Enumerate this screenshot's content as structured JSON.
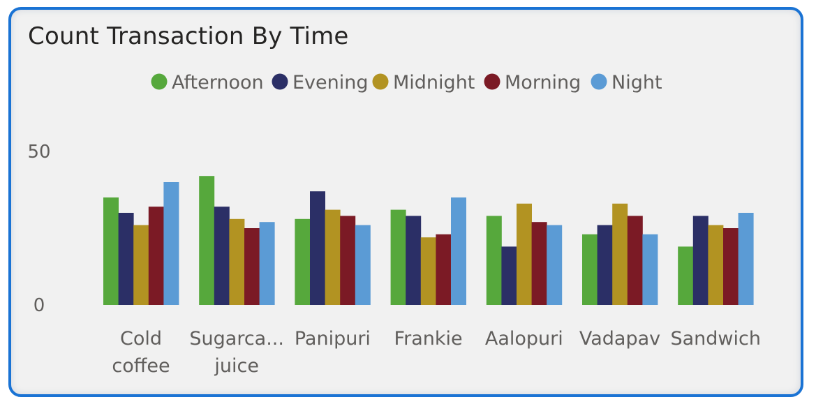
{
  "chart_data": {
    "type": "bar",
    "title": "Count Transaction By Time",
    "categories": [
      "Cold coffee",
      "Sugarca... juice",
      "Panipuri",
      "Frankie",
      "Aalopuri",
      "Vadapav",
      "Sandwich"
    ],
    "category_lines": [
      [
        "Cold",
        "coffee"
      ],
      [
        "Sugarca...",
        "juice"
      ],
      [
        "Panipuri"
      ],
      [
        "Frankie"
      ],
      [
        "Aalopuri"
      ],
      [
        "Vadapav"
      ],
      [
        "Sandwich"
      ]
    ],
    "series": [
      {
        "name": "Afternoon",
        "color": "#56a83c",
        "values": [
          35,
          42,
          28,
          31,
          29,
          23,
          19
        ]
      },
      {
        "name": "Evening",
        "color": "#2b2f66",
        "values": [
          30,
          32,
          37,
          29,
          19,
          26,
          29
        ]
      },
      {
        "name": "Midnight",
        "color": "#b29322",
        "values": [
          26,
          28,
          31,
          22,
          33,
          33,
          26
        ]
      },
      {
        "name": "Morning",
        "color": "#7b1a25",
        "values": [
          32,
          25,
          29,
          23,
          27,
          29,
          25
        ]
      },
      {
        "name": "Night",
        "color": "#5b9bd5",
        "values": [
          40,
          27,
          26,
          35,
          26,
          23,
          30
        ]
      }
    ],
    "yticks": [
      0,
      50
    ],
    "ylim": [
      0,
      50
    ],
    "xlabel": "",
    "ylabel": "",
    "legend": "top-center",
    "grid": false
  }
}
